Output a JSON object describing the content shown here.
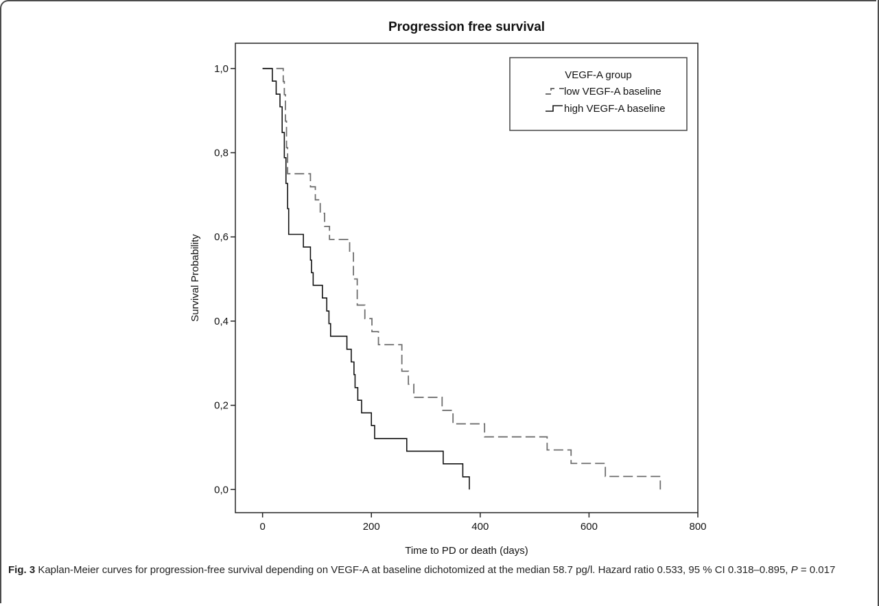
{
  "chart_data": {
    "type": "line",
    "title": "Progression free survival",
    "xlabel": "Time to PD or death (days)",
    "ylabel": "Survival Probability",
    "xlim": [
      -50,
      800
    ],
    "ylim": [
      -0.055,
      1.06
    ],
    "x_ticks": [
      "0",
      "200",
      "400",
      "600",
      "800"
    ],
    "x_tick_values": [
      0,
      200,
      400,
      600,
      800
    ],
    "y_ticks": [
      "0,0",
      "0,2",
      "0,4",
      "0,6",
      "0,8",
      "1,0"
    ],
    "y_tick_values": [
      0,
      0.2,
      0.4,
      0.6,
      0.8,
      1.0
    ],
    "legend": {
      "title": "VEGF-A group",
      "position": "top-right"
    },
    "series": [
      {
        "name": "low VEGF-A baseline",
        "style": "dashed",
        "color": "#6e6e6e",
        "x": [
          0,
          38,
          40,
          42,
          44,
          46,
          88,
          97,
          106,
          114,
          123,
          132,
          160,
          167,
          174,
          188,
          201,
          213,
          230,
          256,
          268,
          278,
          330,
          340,
          350,
          372,
          408,
          523,
          567,
          588,
          630,
          700,
          731
        ],
        "y": [
          1.0,
          0.969,
          0.938,
          0.875,
          0.812,
          0.75,
          0.719,
          0.688,
          0.656,
          0.625,
          0.594,
          0.594,
          0.562,
          0.5,
          0.438,
          0.406,
          0.375,
          0.344,
          0.344,
          0.281,
          0.25,
          0.219,
          0.188,
          0.188,
          0.156,
          0.156,
          0.125,
          0.094,
          0.062,
          0.062,
          0.031,
          0.031,
          0.0
        ]
      },
      {
        "name": "high VEGF-A baseline",
        "style": "solid",
        "color": "#111111",
        "x": [
          0,
          18,
          25,
          32,
          36,
          40,
          43,
          46,
          48,
          75,
          88,
          90,
          93,
          110,
          118,
          122,
          125,
          155,
          163,
          168,
          170,
          175,
          182,
          200,
          206,
          210,
          265,
          332,
          368,
          380
        ],
        "y": [
          1.0,
          0.97,
          0.939,
          0.909,
          0.848,
          0.788,
          0.727,
          0.667,
          0.606,
          0.576,
          0.545,
          0.515,
          0.485,
          0.455,
          0.424,
          0.394,
          0.364,
          0.333,
          0.303,
          0.273,
          0.242,
          0.212,
          0.182,
          0.152,
          0.121,
          0.121,
          0.091,
          0.061,
          0.03,
          0.0
        ]
      }
    ]
  },
  "caption": {
    "label": "Fig. 3",
    "text_1": " Kaplan-Meier curves for progression-free survival depending on VEGF-A at baseline dichotomized at the median 58.7 pg/l. Hazard ratio 0.533, 95 % CI 0.318–0.895, ",
    "p_symbol": "P",
    "text_2": " = 0.017"
  }
}
